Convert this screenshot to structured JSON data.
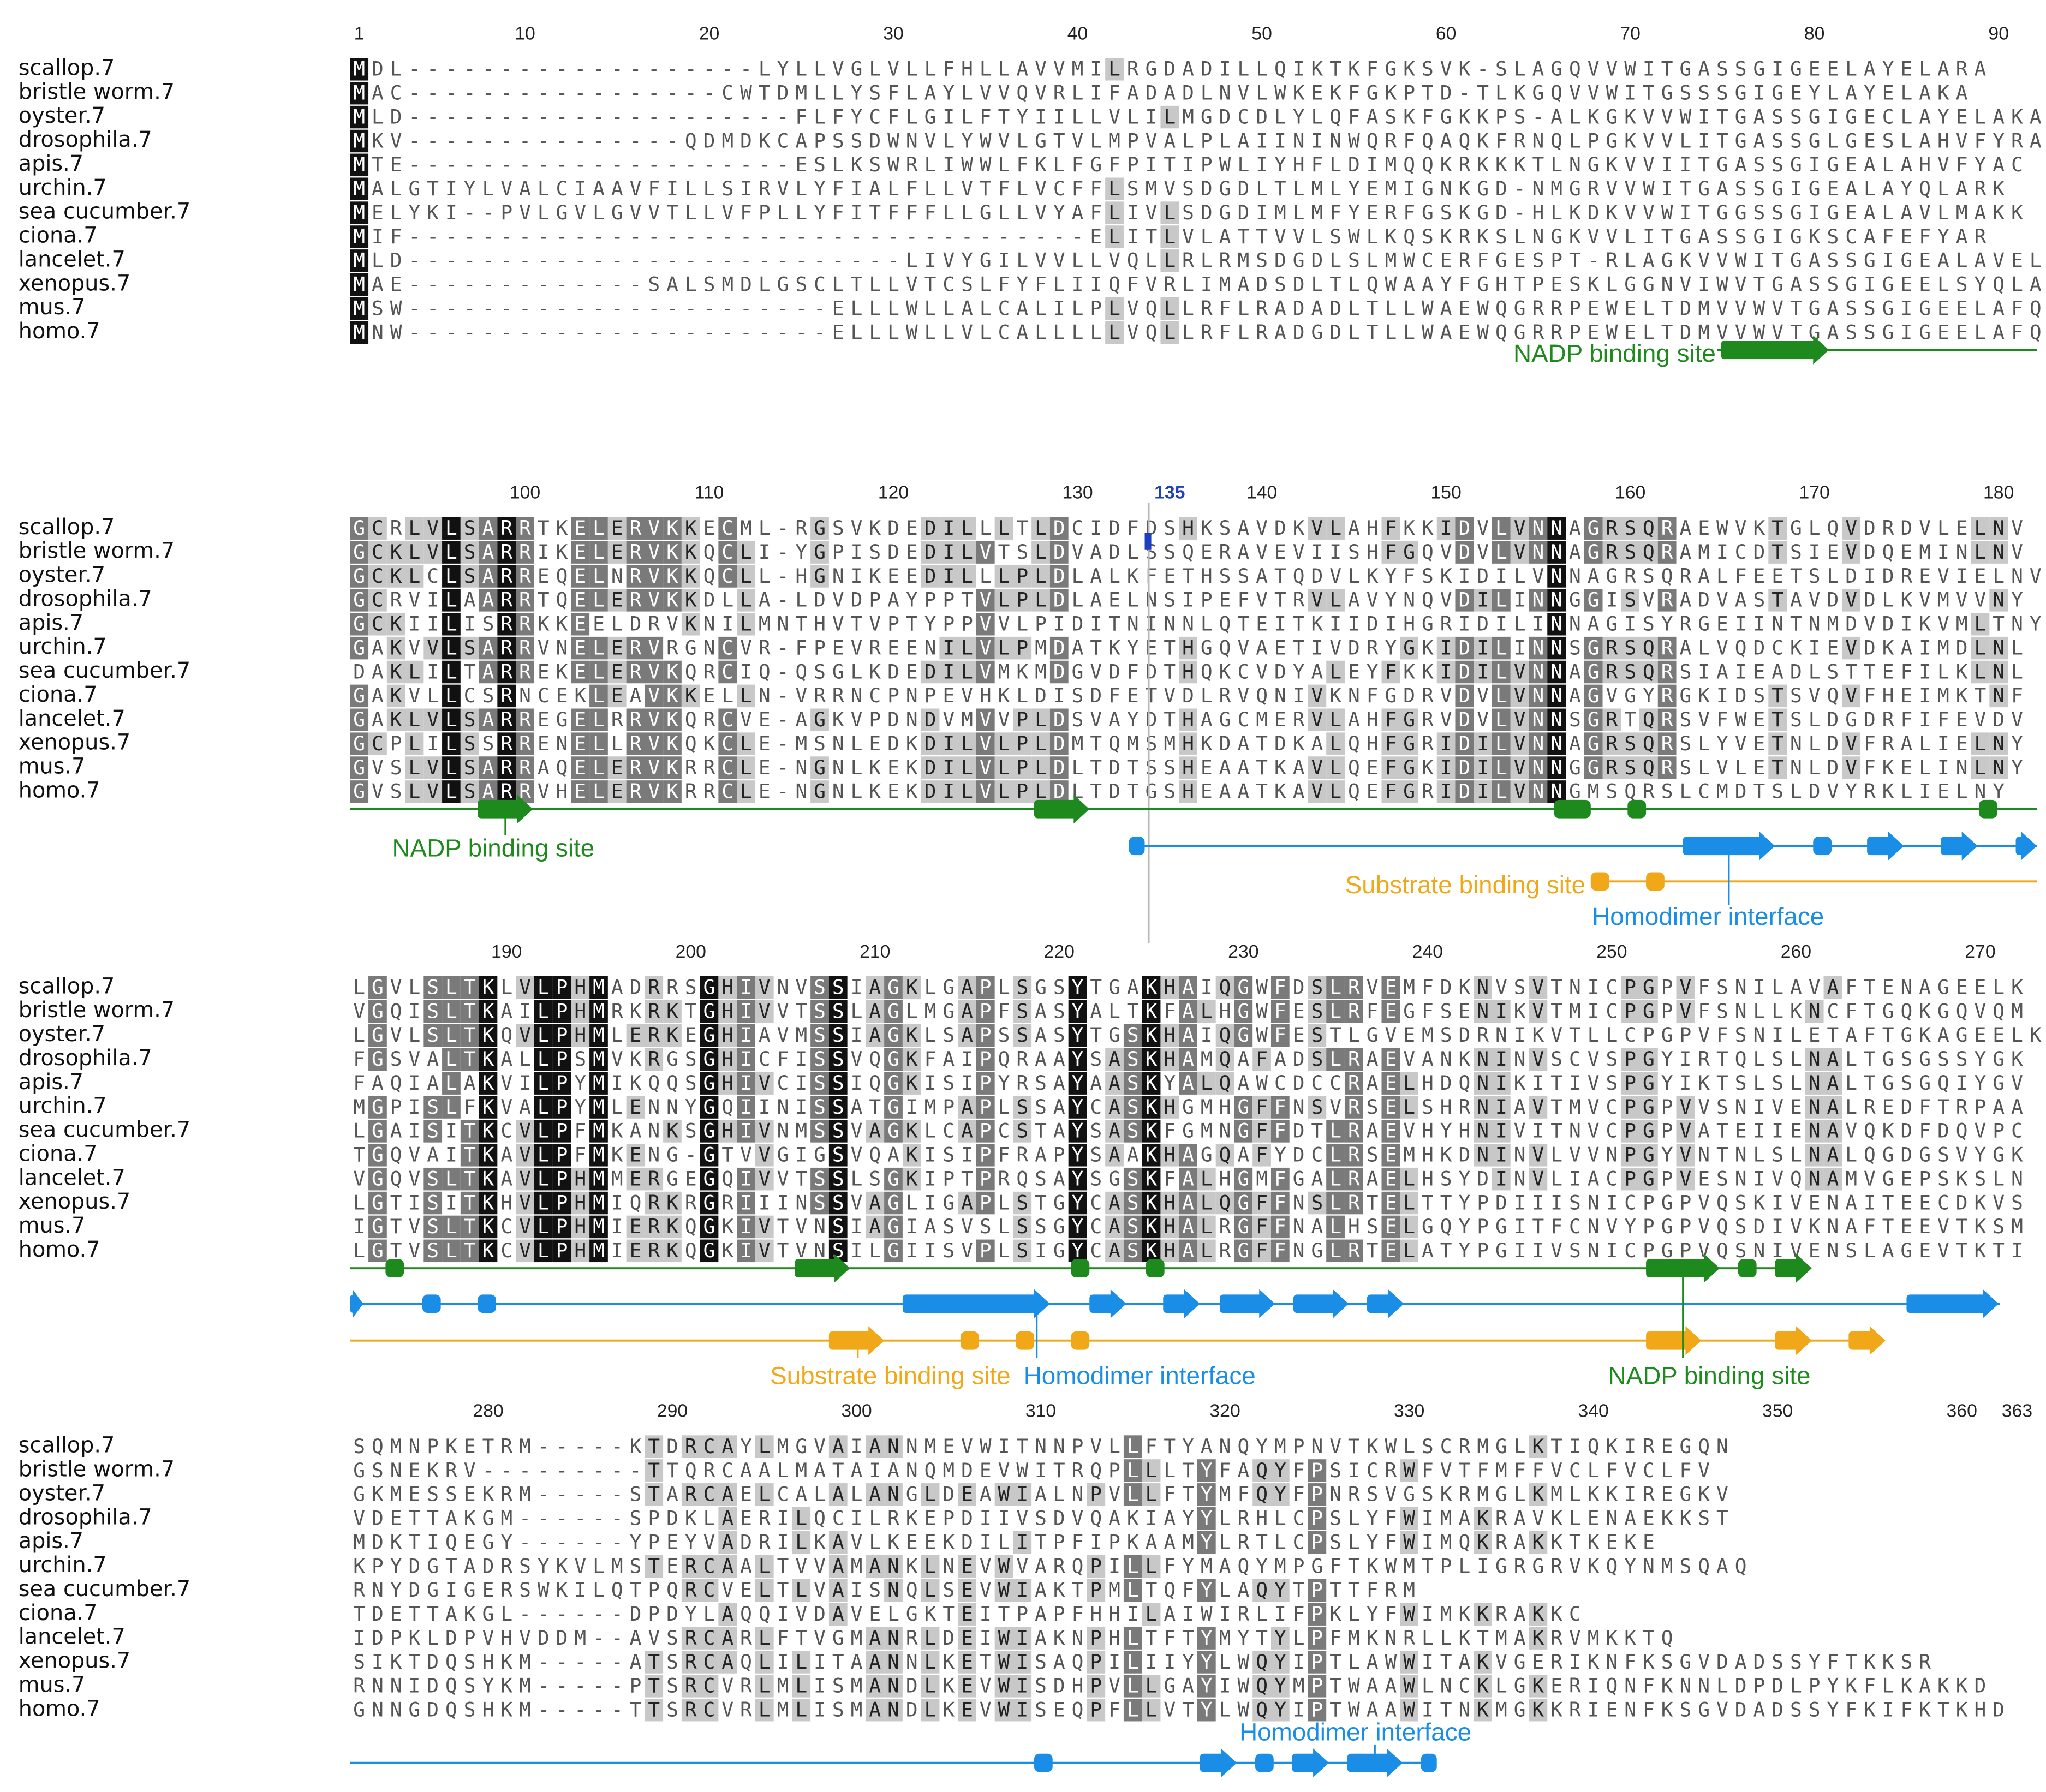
{
  "species": [
    "scallop.7",
    "bristle worm.7",
    "oyster.7",
    "drosophila.7",
    "apis.7",
    "urchin.7",
    "sea cucumber.7",
    "ciona.7",
    "lancelet.7",
    "xenopus.7",
    "mus.7",
    "homo.7"
  ],
  "colors": {
    "nadp": "#1e8a1e",
    "homodimer": "#1a8de6",
    "substrate": "#f0a818",
    "conserved_full": "#111111",
    "conserved_high": "#7a7a7a",
    "conserved_mid": "#c8c8c8",
    "cursor": "#1f3fbf"
  },
  "blocks": [
    {
      "start": 1,
      "ticks": [
        "1",
        "10",
        "20",
        "30",
        "40",
        "50",
        "60",
        "70",
        "80",
        "90"
      ],
      "highlighted_tick": "",
      "rows": [
        "MDL-------------------LYLLVGLVLLFHLLAVVMILRGDADILLQIKTKFGKSVK-SLAGQVVWITGASSGIGEELAYELARA",
        "MAC-----------------CWTDMLLYSFLAYLVVQVRLIFADADLNVLWKEKFGKPTD-TLKGQVVWITGSSSGIGEYLAYELAKA",
        "MLD---------------------FLFYCFLGILFTYIILLVLILMGDCDLYLQFASKFGKKPS-ALKGKVVWITGASSGIGECLAYELAKA",
        "MKV---------------QDMDKCAPSSDWNVLYWVLGTVLMPVALPLAIININWQRFQAQKFRNQLPGKVVLITGASSGLGESLAHVFYRA",
        "MTE---------------------ESLKSWRLIWWLFKLFGFPITIPWLIYHFLDIMQQKRKKKTLNGKVVIITGASSGIGEALAHVFYAC",
        "MALGTIYLVALCIAAVFILLSIRVLYFIALFLLVTFLVCFFLSMVSDGDLTLMLYEMIGNKGD-NMGRVVWITGASSGIGEALAYQLARK",
        "MELYKI--PVLGVLGVVTLLVFPLLYFITFFFLLGLLVYAFLIVLSDGDIMLMFYERFGSKGD-HLKDKVVWITGGSSGIGEALAVLMAKK",
        "MIF-------------------------------------ELITLVLATTVVLSWLKQSKRKSLNGKVVLITGASSGIGKSCAFEFYAR",
        "MLD---------------------------LIVYGILVVLLVQLLRLRMSDGDLSLMWCERFGESPT-RLAGKVVWITGASSGIGEALAVELSRV",
        "MAE-------------SALSMDLGSCLTLLVTCSLFYFLIIQFVRLIMADSDLTLQWAAYFGHTPESKLGGNVIWVTGASSGIGEELSYQLAKL",
        "MSW-----------------------ELLLWLLALCALILPLVQLLRFLRADADLTLLWAEWQGRRPEWELTDMVVWVTGASSGIGEELAFQLSKL",
        "MNW-----------------------ELLLWLLVLCALLLLLVQLLRFLRADGDLTLLWAEWQGRRPEWELTDMVVWVTGASSGIGEELAFQLSKL"
      ]
    },
    {
      "start": 91,
      "ticks": [
        "100",
        "110",
        "120",
        "130",
        "135",
        "140",
        "150",
        "160",
        "170",
        "180"
      ],
      "highlighted_tick": "135",
      "rows": [
        "GCRLVLSARRTKELERVKKECML-RGSVKDEDILLLTLDCIDFDSHKSAVDKVLAHFKKIDVLVNNAGRSQRAEWVKTGLQVDRDVLELNV",
        "GCKLVLSARRIKELERVKKQCLI-YGPISDEDILVTSLDVADLSSQERAVEVIISHFGQVDVLVNNAGRSQRAMICDTSIEVDQEMINLNV",
        "GCKLCLSARREQELNRVKKQCLL-HGNIKEEDILLLPLDLALKFETHSSATQDVLKYFSKIDILVNNAGRSQRALFEETSLDIDREVIELNV",
        "GCRVILAARRTQELERVKKDLLA-LDVDPAYPPTVLPLDLAELNSIPEFVTRVLAVYNQVDILINNGGISVRADVASTAVDVDLKVMVVNY",
        "GCKIILISRRKKEELDRVKNILMNTHVTVPTYPPVVLPIDITNINNLQTEITKIIDIHGRIDILINNAGISYRGEIINTNMDVDIKVMLTNY",
        "GAKVVLSARRVNELERVRGNCVR-FPEVREENILVLPMDATKYETHGQVAETIVDRYGKIDILINNSGRSQRALVQDCKIEVDKAIMDLNL",
        "DAKLILTARREKELERVKQRCIQ-QSGLKDEDILVMKMDGVDFDTHQKCVDYALEYFKKIDILVNNAGRSQRSIAIEADLSTTEFILKLNL",
        "GAKVLLCSRNCEKLEAVKKELLN-VRRNCPNPEVHKLDISDFETVDLRVQNIVKNFGDRVDVLVNNAGVGYRGKIDSTSVQVFHEIMKTNF",
        "GAKLVLSARREGELRRVKQRCVE-AGKVPDNDVMVVPLDSVAYDTHAGCMERVLAHFGRVDVLVNNSGRTQRSVFWETSLDGDRFIFEVDV",
        "GCPLILSSRRENELLRVKQKCLE-MSNLEDKDILVLPLDMTQMSMHKDATDKALQHFGRIDILVNNAGRSQRSLYVETNLDVFRALIELNY",
        "GVSLVLSARRAQELERVKRRCLE-NGNLKEKDILVLPLDLTDTSSHEAATKAVLQEFGKIDILVNNGGRSQRSLVLETNLDVFKELINLNY",
        "GVSLVLSARRVHELERVKRRCLE-NGNLKEKDILVLPLDLTDTGSHEAATKAVLQEFGRIDILVNNGMSQRSLCMDTSLDVYRKLIELNY"
      ]
    },
    {
      "start": 182,
      "ticks": [
        "190",
        "200",
        "210",
        "220",
        "230",
        "240",
        "250",
        "260",
        "270"
      ],
      "highlighted_tick": "",
      "rows": [
        "LGVLSLTKLVLPHMADRRSGHIVNVSSIAGKLGAPLSGSYTGAKHAIQGWFDSLRVEMFDKNVSVTNICPGPVFSNILAVAFTENAGEELK",
        "VGQISLTKAILPHMRKRKTGHIVVTSSLAGLMGAPFSASYALTKFALHGWFESLRFEGFSENIKVTMICPGPVFSNLLKNCFTGQKGQVQM",
        "LGVLSLTKQVLPHMLERKEGHIAVMSSIAGKLSAPSSASYTGSKHAIQGWFESTLGVEMSDRNIKVTLLCPGPVFSNILETAFTGKAGEELK",
        "FGSVALTKALLPSMVKRGSGHICFISSVQGKFAIPQRAAYSASKHAMQAFADSLRAEVANKNINVSCVSPGYIRTQLSLNALTGSGSSYGK",
        "FAQIALAKVILPYMIKQQSGHIVCISSIQGKISIPYRSAYAASKYALQAWCDCCRAELHDQNIKITIVSPGYIKTSLSLNALTGSGQIYGV",
        "MGPISLFKVALPYMLENNYGQIINISSATGIMPAPLSSAYCASKHGMHGFFNSVRSELSHRNIAVTMVCPGPVVSNIVENALREDFTRPAA",
        "LGAISITKCVLPFMKANKSGHIVNMSSVAGKLCAPCSTAYSASKFGMNGFFDTLRAEVHYHNIVITNVCPGPVATEIIENAVQKDFDQVPC",
        "TGQVAITKAVLPFMKENG-GTVVGIGSVQAKISIPFRAPYSAAKHAGQAFYDCLRSEMHKDNINVLVVNPGYVNTNLSLNALQGDGSVYGK",
        "VGQVSLTKAVLPHMMERGEGQIVVTSSLSGKIPTPRQSAYSGSKFALHGMFGALRAELHSYDINVLIACPGPVESNIVQNAMVGEPSKSLN",
        "LGTISITKHVLPHMIQRKRGRIIINSSVAGLIGAPLSTGYCASKHALQGFFNSLRTELTTYPDIIISNICPGPVQSKIVENAITEECDKVS",
        "IGTVSLTKCVLPHMIERKQGKIVTVNSIAGIASVSLSSGYCASKHALRGFFNALHSELGQYPGITFCNVYPGPVQSDIVKNAFTEEVTKSM",
        "LGTVSLTKCVLPHMIERKQGKIVTVNSILGIISVPLSIGYCASKHALRGFFNGLRTELATYPGIIVSNICPGPVQSNIVENSLAGEVTKTI"
      ]
    },
    {
      "start": 273,
      "ticks": [
        "280",
        "290",
        "300",
        "310",
        "320",
        "330",
        "340",
        "350",
        "360",
        "363"
      ],
      "highlighted_tick": "",
      "rows": [
        "SQMNPKETRM-----KTDRCAYLMGVAIANNMEVWITNNPVLLFTYANQYMPNVTKWLSCRMGLKTIQKIREGQN",
        "GSNEKRV---------TTQRCAALMATAIANQMDEVWITRQPLLLTYFAQYFPSICRWFVTFMFFVCLFVCLFV",
        "GKMESSEKRM-----STARCAELCALALANGLDEAWIALNPVLLFTYMFQYFPNRSVGSKRMGLKMLKKIREGKV",
        "VDETTAKGM------SPDKLAERILQCILRKEPDIIVSDVQAKIAYYLRHLCPSLYFWIMAKRAVKLENAEKKST",
        "MDKTIQEGY------YPEYVADRILKAVLKEEKDILITPFIPKAAMYLRTLCPSLYFWIMQKRAKKTKEKE",
        "KPYDGTADRSYKVLMSTERCAALTVVAMANKLNEVWVARQPILLFYMAQYMPGFTKWMTPLIGRGRVKQYNMSQAQ",
        "RNYDGIGERSWKILQTPQRCVELTLVAISNQLSEVWIAKTPMLTQFYLAQYTPTTFRM",
        "TDETTAKGL------DPDYLAQQIVDAVELGKTEITPAPFHHILAIWIRLIFPKLYFWIMKKRAKKC",
        "IDPKLDPVHVDDM--AVSRCARLFTVGMANRLDEIWIAKNPHLTFTYMYTYLPFMKNRLLKTMAKRVMKKTQ",
        "SIKTDQSHKM-----ATSRCAQLILITAANNLKETWISAQPILIIYYLWQYIPTLAWWITAKVGERIKNFKSGVDADSSYFTKKSR",
        "RNNIDQSYKM-----PTSRCVRLMLISMANDLKEVWISDHPVLLGAYIWQYMPTWAAWLNCKLGKERIQNFKNNLDPDLPYKFLKAKKD",
        "GNNGDQSHKM-----TTSRCVRLMLISMANDLKEVWISEQPFLLVTYLWQYIPTWAAWITNKMGKKRIENFKSGVDADSSYFKIFKTKHD"
      ]
    }
  ],
  "features": {
    "nadp_label": "NADP binding site",
    "homodimer_label": "Homodimer interface",
    "substrate_label": "Substrate binding site"
  }
}
